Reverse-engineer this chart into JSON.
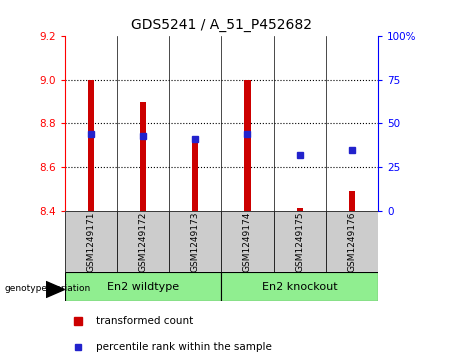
{
  "title": "GDS5241 / A_51_P452682",
  "samples": [
    "GSM1249171",
    "GSM1249172",
    "GSM1249173",
    "GSM1249174",
    "GSM1249175",
    "GSM1249176"
  ],
  "transformed_count": [
    9.0,
    8.9,
    8.72,
    9.0,
    8.41,
    8.49
  ],
  "percentile_rank": [
    44,
    43,
    41,
    44,
    32,
    35
  ],
  "ylim_left": [
    8.4,
    9.2
  ],
  "ylim_right": [
    0,
    100
  ],
  "yticks_left": [
    8.4,
    8.6,
    8.8,
    9.0,
    9.2
  ],
  "yticks_right": [
    0,
    25,
    50,
    75,
    100
  ],
  "bar_color": "#cc0000",
  "dot_color": "#2222cc",
  "bar_base": 8.4,
  "group1_label": "En2 wildtype",
  "group2_label": "En2 knockout",
  "group_bg_color": "#90ee90",
  "sample_bg_color": "#cccccc",
  "genotype_label": "genotype/variation",
  "legend_bar": "transformed count",
  "legend_dot": "percentile rank within the sample",
  "bar_width": 0.12,
  "grid_color": "black",
  "grid_linestyle": "dotted",
  "grid_linewidth": 0.8
}
